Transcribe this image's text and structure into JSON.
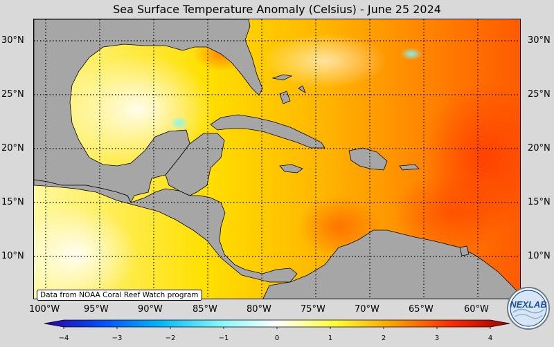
{
  "title": "Sea Surface Temperature Anomaly (Celsius) - June 25 2024",
  "lat_labels": [
    "30°N",
    "25°N",
    "20°N",
    "15°N",
    "10°N"
  ],
  "lon_labels": [
    "100°W",
    "95°W",
    "90°W",
    "85°W",
    "80°W",
    "75°W",
    "70°W",
    "65°W",
    "60°W"
  ],
  "credit": "Data from NOAA Coral Reef Watch program",
  "logo_text": "NEXLAB",
  "colorbar": {
    "ticks": [
      "−4",
      "−3",
      "−2",
      "−1",
      "0",
      "1",
      "2",
      "3",
      "4"
    ],
    "colors": [
      "#2b00a8",
      "#0050ff",
      "#00b8ff",
      "#7ff7ff",
      "#ffffff",
      "#ffff30",
      "#ff9e00",
      "#ff2a00",
      "#a00000"
    ]
  },
  "map": {
    "land_color": "#a6a6a6",
    "ocean_base_color": "#ffd200",
    "lat_range": [
      6,
      32
    ],
    "lon_range": [
      -101,
      -56
    ]
  }
}
